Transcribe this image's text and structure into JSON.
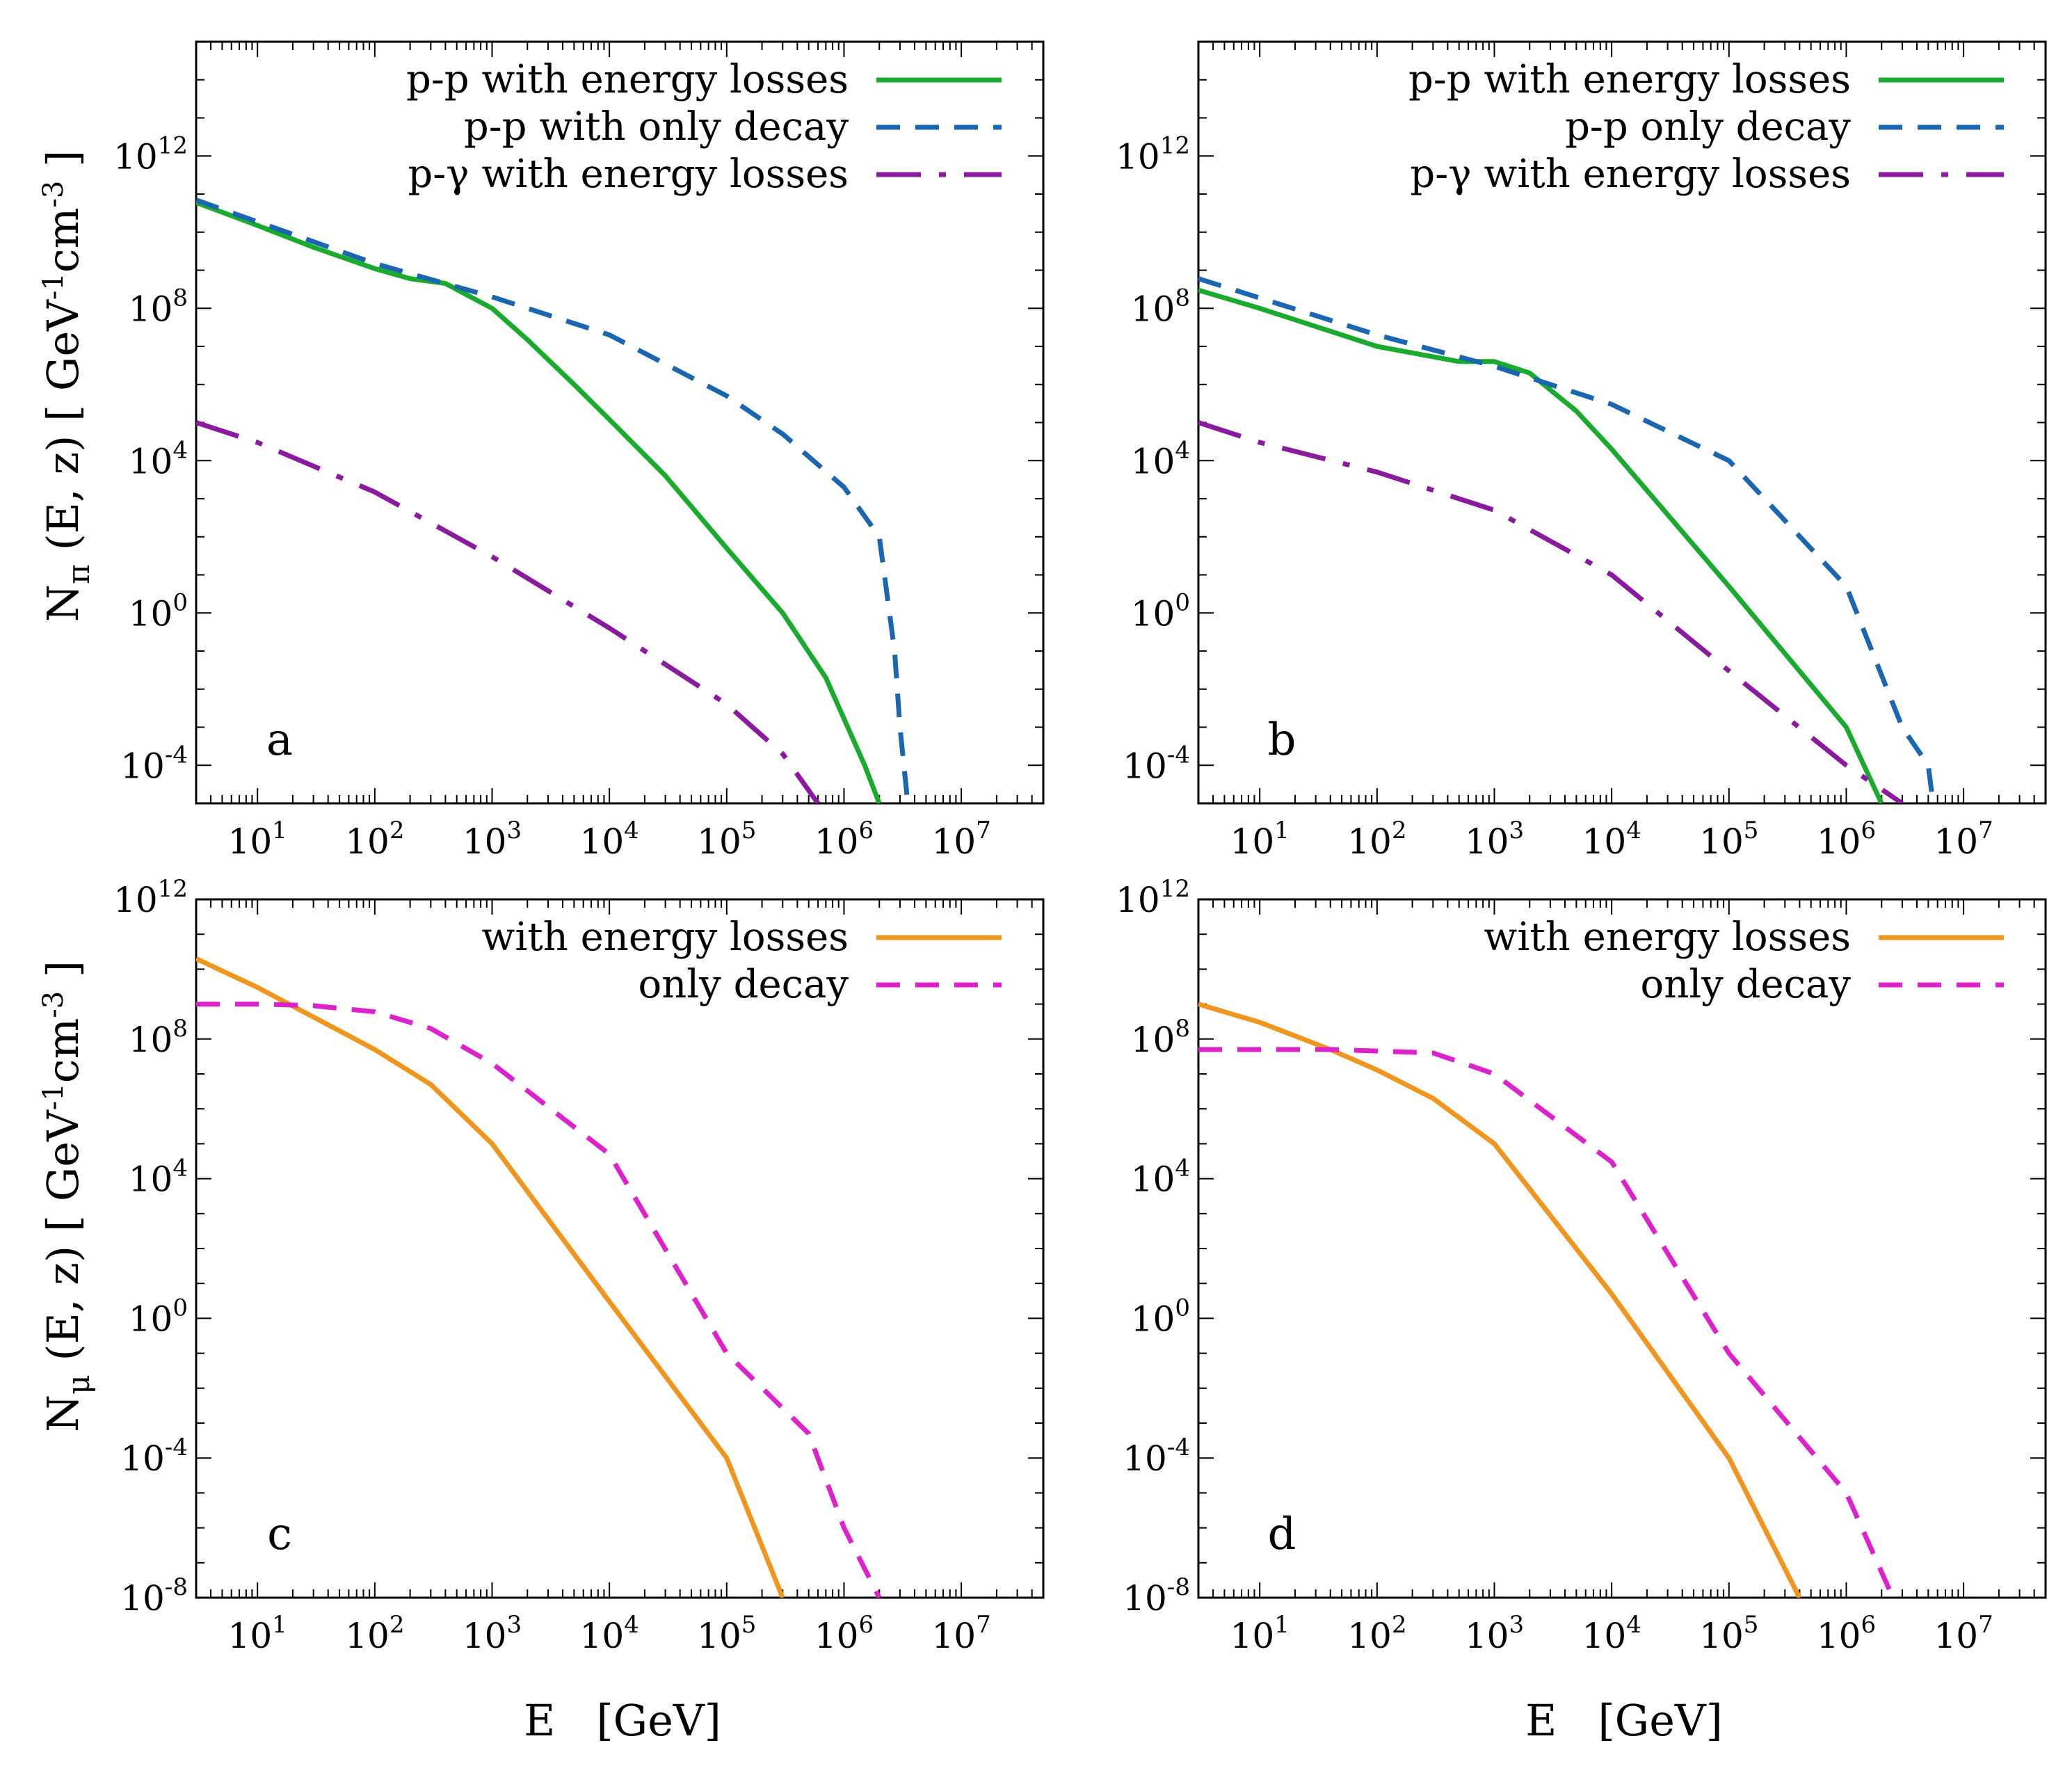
{
  "figure": {
    "x_axis_label": "E   [GeV]",
    "y_axis_label_top": "Nπ (E, z)   [ GeV-1cm-3 ]",
    "y_axis_label_bottom": "Nμ (E, z)   [ GeV-1cm-3 ]"
  },
  "chart_data": [
    {
      "panel": "a",
      "type": "line",
      "xscale": "log",
      "yscale": "log",
      "xlim": [
        3,
        50000000
      ],
      "ylim": [
        1e-05,
        1000000000000000.0
      ],
      "xticks": [
        10,
        100,
        1000,
        10000,
        100000,
        1000000,
        10000000
      ],
      "xtick_labels": [
        "10^1",
        "10^2",
        "10^3",
        "10^4",
        "10^5",
        "10^6",
        "10^7"
      ],
      "yticks": [
        0.0001,
        1,
        10000,
        100000000,
        1000000000000
      ],
      "ytick_labels": [
        "10^-4",
        "10^0",
        "10^4",
        "10^8",
        "10^12"
      ],
      "legend_position": "top-right",
      "series": [
        {
          "name": "p-p with energy losses",
          "color": "#1aaa2e",
          "style": "solid",
          "x": [
            3,
            10,
            30,
            100,
            200,
            400,
            1000,
            2000,
            5000,
            10000,
            30000,
            100000,
            300000,
            700000,
            1500000,
            2000000
          ],
          "y": [
            60000000000.0,
            15000000000.0,
            4000000000.0,
            1100000000.0,
            600000000.0,
            450000000.0,
            100000000.0,
            15000000.0,
            1000000.0,
            120000.0,
            4000,
            50,
            1,
            0.02,
            0.0001,
            1e-05
          ]
        },
        {
          "name": "p-p with only decay",
          "color": "#1a66b0",
          "style": "dashed",
          "x": [
            3,
            100,
            1000,
            10000,
            100000,
            300000,
            1000000,
            2000000,
            2700000,
            3000000,
            3500000
          ],
          "y": [
            70000000000.0,
            1500000000.0,
            200000000.0,
            20000000.0,
            500000.0,
            50000.0,
            2000,
            100,
            0.1,
            0.001,
            1e-05
          ]
        },
        {
          "name": "p-γ with energy losses",
          "color": "#8a1a9e",
          "style": "dash-dot",
          "x": [
            3,
            10,
            100,
            1000,
            10000,
            100000,
            300000,
            600000
          ],
          "y": [
            100000.0,
            30000.0,
            1500,
            30,
            0.4,
            0.004,
            0.0002,
            1e-05
          ]
        }
      ],
      "annotation": "a"
    },
    {
      "panel": "b",
      "type": "line",
      "xscale": "log",
      "yscale": "log",
      "xlim": [
        3,
        50000000
      ],
      "ylim": [
        1e-05,
        1000000000000000.0
      ],
      "xticks": [
        10,
        100,
        1000,
        10000,
        100000,
        1000000,
        10000000
      ],
      "xtick_labels": [
        "10^1",
        "10^2",
        "10^3",
        "10^4",
        "10^5",
        "10^6",
        "10^7"
      ],
      "yticks": [
        0.0001,
        1,
        10000,
        100000000,
        1000000000000
      ],
      "ytick_labels": [
        "10^-4",
        "10^0",
        "10^4",
        "10^8",
        "10^12"
      ],
      "legend_position": "top-right",
      "series": [
        {
          "name": "p-p with energy losses",
          "color": "#1aaa2e",
          "style": "solid",
          "x": [
            3,
            10,
            100,
            500,
            1000,
            2000,
            5000,
            10000,
            100000,
            1000000,
            2000000
          ],
          "y": [
            300000000.0,
            100000000.0,
            10000000.0,
            4000000.0,
            4000000.0,
            2000000.0,
            200000.0,
            20000.0,
            5,
            0.001,
            1e-05
          ]
        },
        {
          "name": "p-p only decay",
          "color": "#1a66b0",
          "style": "dashed",
          "x": [
            3,
            100,
            1000,
            10000,
            100000,
            1000000,
            3000000,
            5000000,
            5500000
          ],
          "y": [
            600000000.0,
            20000000.0,
            3000000.0,
            300000.0,
            10000.0,
            5,
            0.001,
            0.0001,
            1e-05
          ]
        },
        {
          "name": "p-γ with energy losses",
          "color": "#8a1a9e",
          "style": "dash-dot",
          "x": [
            3,
            10,
            100,
            1000,
            10000,
            100000,
            1000000,
            3000000
          ],
          "y": [
            100000.0,
            30000.0,
            5000,
            500,
            10,
            0.03,
            0.0001,
            1e-05
          ]
        }
      ],
      "annotation": "b"
    },
    {
      "panel": "c",
      "type": "line",
      "xscale": "log",
      "yscale": "log",
      "xlim": [
        3,
        50000000
      ],
      "ylim": [
        1e-08,
        1000000000000.0
      ],
      "xticks": [
        10,
        100,
        1000,
        10000,
        100000,
        1000000,
        10000000
      ],
      "xtick_labels": [
        "10^1",
        "10^2",
        "10^3",
        "10^4",
        "10^5",
        "10^6",
        "10^7"
      ],
      "yticks": [
        1e-08,
        0.0001,
        1,
        10000,
        100000000,
        1000000000000
      ],
      "ytick_labels": [
        "10^-8",
        "10^-4",
        "10^0",
        "10^4",
        "10^8",
        "10^12"
      ],
      "legend_position": "top-right",
      "series": [
        {
          "name": "with energy losses",
          "color": "#f0961e",
          "style": "solid",
          "x": [
            3,
            10,
            100,
            300,
            1000,
            10000,
            100000,
            300000
          ],
          "y": [
            20000000000.0,
            3000000000.0,
            50000000.0,
            5000000.0,
            100000.0,
            3,
            0.0001,
            1e-08
          ]
        },
        {
          "name": "only decay",
          "color": "#dd22cc",
          "style": "dashed",
          "x": [
            3,
            10,
            30,
            100,
            300,
            1000,
            10000,
            100000,
            500000,
            1000000,
            2000000
          ],
          "y": [
            1000000000.0,
            1000000000.0,
            900000000.0,
            600000000.0,
            200000000.0,
            20000000.0,
            50000.0,
            0.1,
            0.0005,
            1e-06,
            1e-08
          ]
        }
      ],
      "annotation": "c"
    },
    {
      "panel": "d",
      "type": "line",
      "xscale": "log",
      "yscale": "log",
      "xlim": [
        3,
        50000000
      ],
      "ylim": [
        1e-08,
        1000000000000.0
      ],
      "xticks": [
        10,
        100,
        1000,
        10000,
        100000,
        1000000,
        10000000
      ],
      "xtick_labels": [
        "10^1",
        "10^2",
        "10^3",
        "10^4",
        "10^5",
        "10^6",
        "10^7"
      ],
      "yticks": [
        1e-08,
        0.0001,
        1,
        10000,
        100000000,
        1000000000000
      ],
      "ytick_labels": [
        "10^-8",
        "10^-4",
        "10^0",
        "10^4",
        "10^8",
        "10^12"
      ],
      "legend_position": "top-right",
      "series": [
        {
          "name": "with energy losses",
          "color": "#f0961e",
          "style": "solid",
          "x": [
            3,
            10,
            40,
            100,
            300,
            1000,
            10000,
            100000,
            400000
          ],
          "y": [
            1000000000.0,
            300000000.0,
            50000000.0,
            13000000.0,
            2000000.0,
            100000.0,
            5,
            0.0001,
            1e-08
          ]
        },
        {
          "name": "only decay",
          "color": "#dd22cc",
          "style": "dashed",
          "x": [
            3,
            40,
            300,
            1000,
            10000,
            100000,
            1000000,
            2500000
          ],
          "y": [
            50000000.0,
            50000000.0,
            40000000.0,
            10000000.0,
            30000.0,
            0.1,
            1e-05,
            1e-08
          ]
        }
      ],
      "annotation": "d"
    }
  ]
}
